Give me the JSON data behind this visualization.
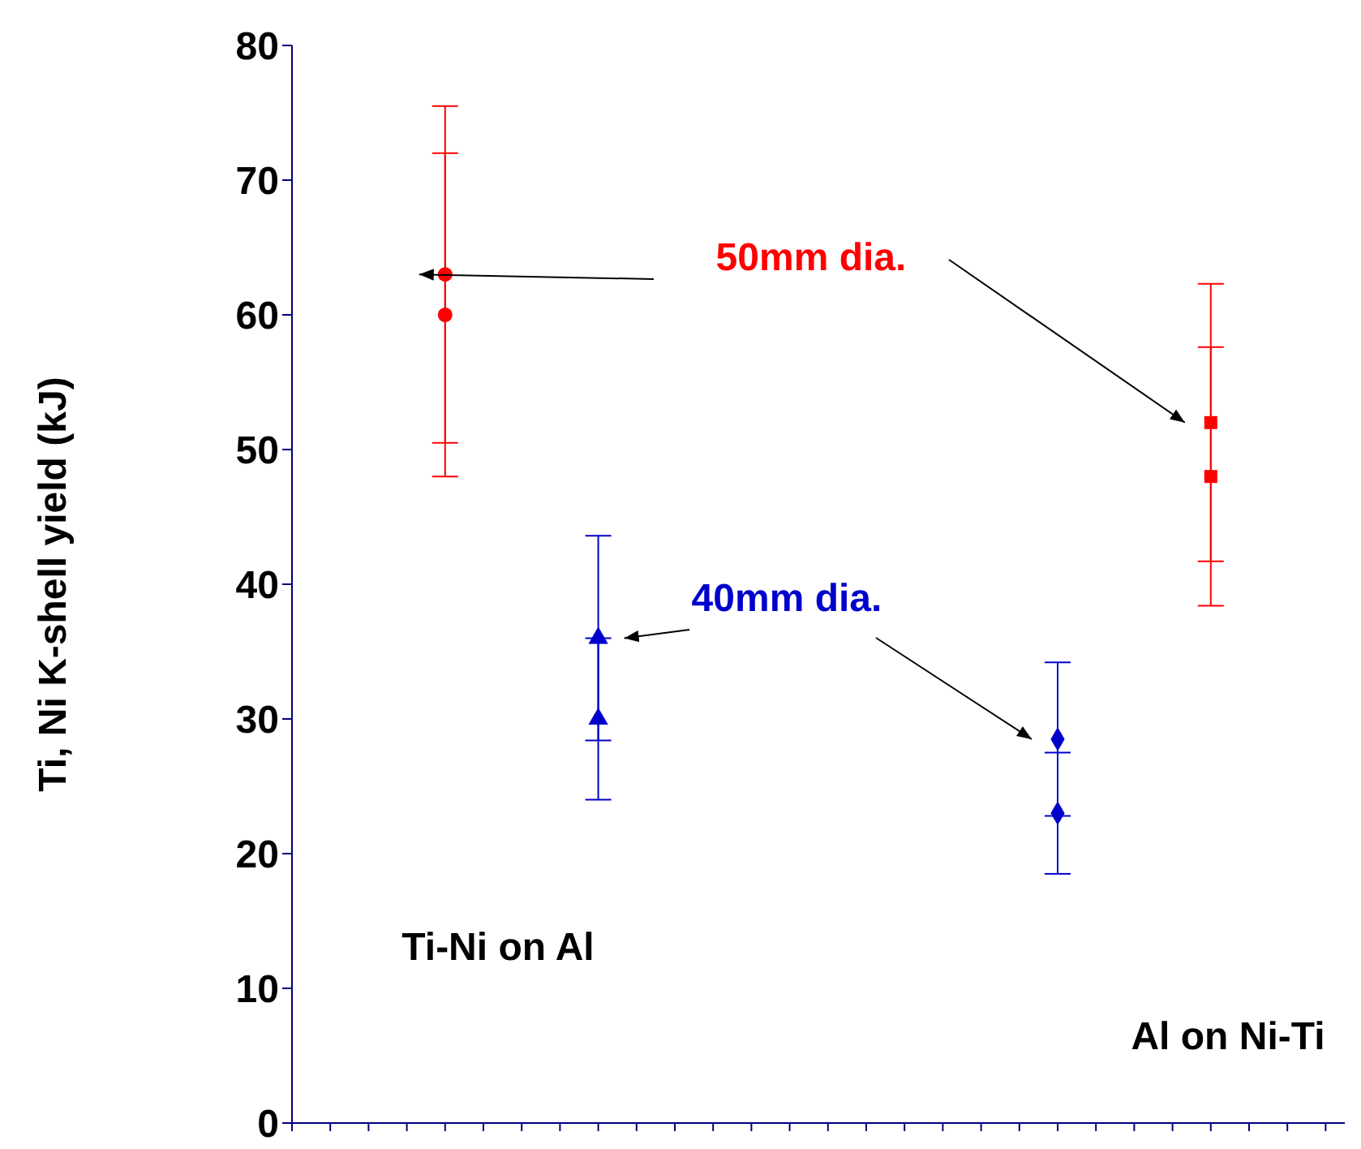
{
  "chart_data": {
    "type": "scatter",
    "ylabel": "Ti, Ni K-shell yield  (kJ)",
    "categories": [
      null,
      null,
      null,
      null,
      null,
      null
    ],
    "ylim": [
      0,
      80
    ],
    "yticks": [
      0,
      10,
      20,
      30,
      40,
      50,
      60,
      70,
      80
    ],
    "grid": false,
    "series": [
      {
        "color": "#ff0000",
        "marker": "circle",
        "values": [
          63,
          null,
          null,
          null,
          null,
          null
        ],
        "errors": [
          [
            50.5,
            75.5
          ],
          null,
          null,
          null,
          null,
          null
        ]
      },
      {
        "color": "#ff0000",
        "marker": "circle",
        "values": [
          60,
          null,
          null,
          null,
          null,
          null
        ],
        "errors": [
          [
            48,
            72
          ],
          null,
          null,
          null,
          null,
          null
        ]
      },
      {
        "color": "#0000cc",
        "marker": "triangle",
        "values": [
          null,
          36,
          null,
          null,
          null,
          null
        ],
        "errors": [
          null,
          [
            28.4,
            43.6
          ],
          null,
          null,
          null,
          null
        ]
      },
      {
        "color": "#0000cc",
        "marker": "triangle",
        "values": [
          null,
          30,
          null,
          null,
          null,
          null
        ],
        "errors": [
          null,
          [
            24,
            36
          ],
          null,
          null,
          null,
          null
        ]
      },
      {
        "color": "#0000cc",
        "marker": "diamond",
        "values": [
          null,
          null,
          null,
          null,
          28.5,
          null
        ],
        "errors": [
          null,
          null,
          null,
          null,
          [
            22.8,
            34.2
          ],
          null
        ]
      },
      {
        "color": "#0000cc",
        "marker": "diamond",
        "values": [
          null,
          null,
          null,
          null,
          23,
          null
        ],
        "errors": [
          null,
          null,
          null,
          null,
          [
            18.5,
            27.5
          ],
          null
        ]
      },
      {
        "color": "#ff0000",
        "marker": "square",
        "values": [
          null,
          null,
          null,
          null,
          null,
          52
        ],
        "errors": [
          null,
          null,
          null,
          null,
          null,
          [
            41.7,
            62.3
          ]
        ]
      },
      {
        "color": "#ff0000",
        "marker": "square",
        "values": [
          null,
          null,
          null,
          null,
          null,
          48
        ],
        "errors": [
          null,
          null,
          null,
          null,
          null,
          [
            38.4,
            57.6
          ]
        ]
      }
    ],
    "annotations": [
      "50mm dia.",
      "40mm dia.",
      "Ti-Ni on Al",
      "Al on Ni-Ti"
    ]
  }
}
